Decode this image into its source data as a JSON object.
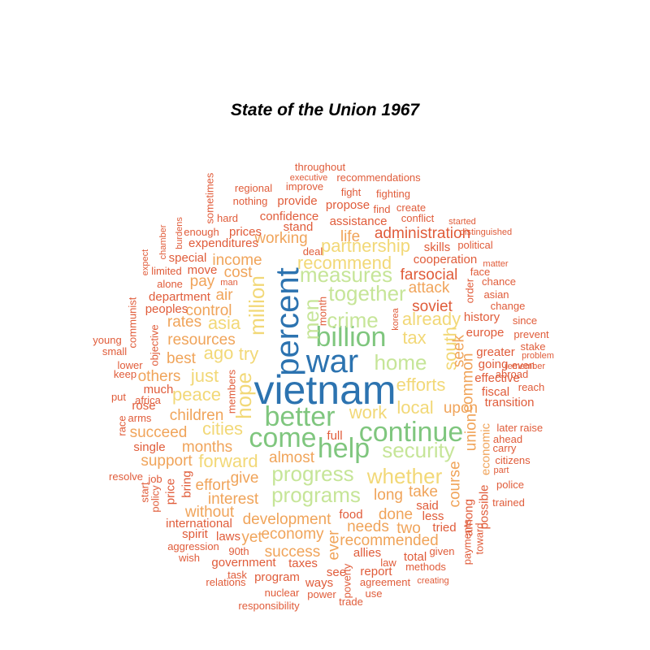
{
  "chart_data": {
    "type": "wordcloud",
    "title": "State of the Union 1967",
    "colors": {
      "darkblue": "#2c73b0",
      "blue": "#4b94c4",
      "green": "#7fc67e",
      "lightgreen": "#c6e598",
      "yellow": "#f2d877",
      "orange": "#f0a45a",
      "redorange": "#e05c3a"
    },
    "words": [
      {
        "text": "vietnam",
        "size": 8,
        "color": "darkblue"
      },
      {
        "text": "war",
        "size": 7,
        "color": "darkblue"
      },
      {
        "text": "percent",
        "size": 7,
        "color": "darkblue"
      },
      {
        "text": "better",
        "size": 6,
        "color": "green"
      },
      {
        "text": "come",
        "size": 6,
        "color": "green"
      },
      {
        "text": "billion",
        "size": 6,
        "color": "green"
      },
      {
        "text": "help",
        "size": 6,
        "color": "green"
      },
      {
        "text": "continue",
        "size": 6,
        "color": "green"
      },
      {
        "text": "progress",
        "size": 5,
        "color": "lightgreen"
      },
      {
        "text": "programs",
        "size": 5,
        "color": "lightgreen"
      },
      {
        "text": "crime",
        "size": 5,
        "color": "lightgreen"
      },
      {
        "text": "home",
        "size": 5,
        "color": "lightgreen"
      },
      {
        "text": "together",
        "size": 5,
        "color": "lightgreen"
      },
      {
        "text": "security",
        "size": 5,
        "color": "lightgreen"
      },
      {
        "text": "measures",
        "size": 5,
        "color": "lightgreen"
      },
      {
        "text": "men",
        "size": 5,
        "color": "lightgreen"
      },
      {
        "text": "whether",
        "size": 5,
        "color": "yellow"
      },
      {
        "text": "hope",
        "size": 5,
        "color": "yellow"
      },
      {
        "text": "million",
        "size": 5,
        "color": "yellow"
      },
      {
        "text": "recommend",
        "size": 4,
        "color": "yellow"
      },
      {
        "text": "try",
        "size": 4,
        "color": "yellow"
      },
      {
        "text": "forward",
        "size": 4,
        "color": "yellow"
      },
      {
        "text": "efforts",
        "size": 4,
        "color": "yellow"
      },
      {
        "text": "local",
        "size": 4,
        "color": "yellow"
      },
      {
        "text": "tax",
        "size": 4,
        "color": "yellow"
      },
      {
        "text": "work",
        "size": 4,
        "color": "yellow"
      },
      {
        "text": "already",
        "size": 4,
        "color": "yellow"
      },
      {
        "text": "south",
        "size": 4,
        "color": "yellow"
      },
      {
        "text": "partnership",
        "size": 4,
        "color": "yellow"
      },
      {
        "text": "peace",
        "size": 4,
        "color": "yellow"
      },
      {
        "text": "just",
        "size": 4,
        "color": "yellow"
      },
      {
        "text": "ago",
        "size": 4,
        "color": "yellow"
      },
      {
        "text": "asia",
        "size": 4,
        "color": "yellow"
      },
      {
        "text": "cities",
        "size": 4,
        "color": "yellow"
      },
      {
        "text": "union",
        "size": 3,
        "color": "orange"
      },
      {
        "text": "course",
        "size": 3,
        "color": "orange"
      },
      {
        "text": "common",
        "size": 3,
        "color": "orange"
      },
      {
        "text": "seek",
        "size": 3,
        "color": "orange"
      },
      {
        "text": "upon",
        "size": 3,
        "color": "orange"
      },
      {
        "text": "take",
        "size": 3,
        "color": "orange"
      },
      {
        "text": "long",
        "size": 3,
        "color": "orange"
      },
      {
        "text": "done",
        "size": 3,
        "color": "orange"
      },
      {
        "text": "two",
        "size": 3,
        "color": "orange"
      },
      {
        "text": "needs",
        "size": 3,
        "color": "orange"
      },
      {
        "text": "recommended",
        "size": 3,
        "color": "orange"
      },
      {
        "text": "development",
        "size": 3,
        "color": "orange"
      },
      {
        "text": "economy",
        "size": 3,
        "color": "orange"
      },
      {
        "text": "success",
        "size": 3,
        "color": "orange"
      },
      {
        "text": "interest",
        "size": 3,
        "color": "orange"
      },
      {
        "text": "give",
        "size": 3,
        "color": "orange"
      },
      {
        "text": "months",
        "size": 3,
        "color": "orange"
      },
      {
        "text": "succeed",
        "size": 3,
        "color": "orange"
      },
      {
        "text": "children",
        "size": 3,
        "color": "orange"
      },
      {
        "text": "almost",
        "size": 3,
        "color": "orange"
      },
      {
        "text": "support",
        "size": 3,
        "color": "orange"
      },
      {
        "text": "effort",
        "size": 3,
        "color": "orange"
      },
      {
        "text": "without",
        "size": 3,
        "color": "orange"
      },
      {
        "text": "yet",
        "size": 3,
        "color": "orange"
      },
      {
        "text": "ever",
        "size": 3,
        "color": "orange"
      },
      {
        "text": "resources",
        "size": 3,
        "color": "orange"
      },
      {
        "text": "control",
        "size": 3,
        "color": "orange"
      },
      {
        "text": "rates",
        "size": 3,
        "color": "orange"
      },
      {
        "text": "best",
        "size": 3,
        "color": "orange"
      },
      {
        "text": "others",
        "size": 3,
        "color": "orange"
      },
      {
        "text": "pay",
        "size": 3,
        "color": "orange"
      },
      {
        "text": "air",
        "size": 3,
        "color": "orange"
      },
      {
        "text": "cost",
        "size": 3,
        "color": "orange"
      },
      {
        "text": "income",
        "size": 3,
        "color": "orange"
      },
      {
        "text": "working",
        "size": 3,
        "color": "orange"
      },
      {
        "text": "life",
        "size": 3,
        "color": "orange"
      },
      {
        "text": "soviet",
        "size": 3,
        "color": "redorange"
      },
      {
        "text": "attack",
        "size": 3,
        "color": "orange"
      },
      {
        "text": "farsocial",
        "size": 3,
        "color": "redorange"
      },
      {
        "text": "cooperation",
        "size": 2,
        "color": "redorange"
      },
      {
        "text": "administration",
        "size": 3,
        "color": "redorange"
      },
      {
        "text": "skills",
        "size": 2,
        "color": "redorange"
      },
      {
        "text": "assistance",
        "size": 2,
        "color": "redorange"
      },
      {
        "text": "confidence",
        "size": 2,
        "color": "redorange"
      },
      {
        "text": "stand",
        "size": 2,
        "color": "redorange"
      },
      {
        "text": "expenditures",
        "size": 2,
        "color": "redorange"
      },
      {
        "text": "prices",
        "size": 2,
        "color": "redorange"
      },
      {
        "text": "special",
        "size": 2,
        "color": "redorange"
      },
      {
        "text": "move",
        "size": 2,
        "color": "redorange"
      },
      {
        "text": "department",
        "size": 2,
        "color": "redorange"
      },
      {
        "text": "peoples",
        "size": 2,
        "color": "redorange"
      },
      {
        "text": "international",
        "size": 2,
        "color": "redorange"
      },
      {
        "text": "food",
        "size": 2,
        "color": "redorange"
      },
      {
        "text": "full",
        "size": 2,
        "color": "redorange"
      },
      {
        "text": "said",
        "size": 2,
        "color": "redorange"
      },
      {
        "text": "less",
        "size": 2,
        "color": "redorange"
      },
      {
        "text": "tried",
        "size": 2,
        "color": "redorange"
      },
      {
        "text": "among",
        "size": 2,
        "color": "redorange"
      },
      {
        "text": "possible",
        "size": 2,
        "color": "redorange"
      },
      {
        "text": "economic",
        "size": 2,
        "color": "orange"
      },
      {
        "text": "history",
        "size": 2,
        "color": "redorange"
      },
      {
        "text": "europe",
        "size": 2,
        "color": "redorange"
      },
      {
        "text": "greater",
        "size": 2,
        "color": "redorange"
      },
      {
        "text": "going",
        "size": 2,
        "color": "redorange"
      },
      {
        "text": "effective",
        "size": 2,
        "color": "redorange"
      },
      {
        "text": "fiscal",
        "size": 2,
        "color": "redorange"
      },
      {
        "text": "transition",
        "size": 2,
        "color": "redorange"
      },
      {
        "text": "allies",
        "size": 2,
        "color": "redorange"
      },
      {
        "text": "report",
        "size": 2,
        "color": "redorange"
      },
      {
        "text": "total",
        "size": 2,
        "color": "redorange"
      },
      {
        "text": "see",
        "size": 2,
        "color": "redorange"
      },
      {
        "text": "ways",
        "size": 2,
        "color": "redorange"
      },
      {
        "text": "taxes",
        "size": 2,
        "color": "redorange"
      },
      {
        "text": "government",
        "size": 2,
        "color": "redorange"
      },
      {
        "text": "program",
        "size": 2,
        "color": "redorange"
      },
      {
        "text": "laws",
        "size": 2,
        "color": "redorange"
      },
      {
        "text": "spirit",
        "size": 2,
        "color": "redorange"
      },
      {
        "text": "price",
        "size": 2,
        "color": "redorange"
      },
      {
        "text": "bring",
        "size": 2,
        "color": "redorange"
      },
      {
        "text": "single",
        "size": 2,
        "color": "redorange"
      },
      {
        "text": "much",
        "size": 2,
        "color": "redorange"
      },
      {
        "text": "rose",
        "size": 2,
        "color": "redorange"
      },
      {
        "text": "provide",
        "size": 2,
        "color": "redorange"
      },
      {
        "text": "propose",
        "size": 2,
        "color": "redorange"
      },
      {
        "text": "enough",
        "size": 1,
        "color": "redorange"
      },
      {
        "text": "hard",
        "size": 1,
        "color": "redorange"
      },
      {
        "text": "regional",
        "size": 1,
        "color": "redorange"
      },
      {
        "text": "nothing",
        "size": 1,
        "color": "redorange"
      },
      {
        "text": "improve",
        "size": 1,
        "color": "redorange"
      },
      {
        "text": "fight",
        "size": 1,
        "color": "redorange"
      },
      {
        "text": "fighting",
        "size": 1,
        "color": "redorange"
      },
      {
        "text": "find",
        "size": 1,
        "color": "redorange"
      },
      {
        "text": "create",
        "size": 1,
        "color": "redorange"
      },
      {
        "text": "conflict",
        "size": 1,
        "color": "redorange"
      },
      {
        "text": "throughout",
        "size": 1,
        "color": "redorange"
      },
      {
        "text": "executive",
        "size": 0,
        "color": "redorange"
      },
      {
        "text": "recommendations",
        "size": 1,
        "color": "redorange"
      },
      {
        "text": "started",
        "size": 0,
        "color": "redorange"
      },
      {
        "text": "distinguished",
        "size": 0,
        "color": "redorange"
      },
      {
        "text": "political",
        "size": 1,
        "color": "redorange"
      },
      {
        "text": "matter",
        "size": 0,
        "color": "redorange"
      },
      {
        "text": "face",
        "size": 1,
        "color": "redorange"
      },
      {
        "text": "chance",
        "size": 1,
        "color": "redorange"
      },
      {
        "text": "asian",
        "size": 1,
        "color": "redorange"
      },
      {
        "text": "change",
        "size": 1,
        "color": "redorange"
      },
      {
        "text": "since",
        "size": 1,
        "color": "redorange"
      },
      {
        "text": "prevent",
        "size": 1,
        "color": "redorange"
      },
      {
        "text": "stake",
        "size": 1,
        "color": "redorange"
      },
      {
        "text": "problem",
        "size": 0,
        "color": "redorange"
      },
      {
        "text": "remember",
        "size": 0,
        "color": "redorange"
      },
      {
        "text": "abroad",
        "size": 1,
        "color": "redorange"
      },
      {
        "text": "even",
        "size": 1,
        "color": "redorange"
      },
      {
        "text": "reach",
        "size": 1,
        "color": "redorange"
      },
      {
        "text": "later",
        "size": 1,
        "color": "redorange"
      },
      {
        "text": "raise",
        "size": 1,
        "color": "redorange"
      },
      {
        "text": "ahead",
        "size": 1,
        "color": "redorange"
      },
      {
        "text": "carry",
        "size": 1,
        "color": "redorange"
      },
      {
        "text": "citizens",
        "size": 1,
        "color": "redorange"
      },
      {
        "text": "part",
        "size": 0,
        "color": "redorange"
      },
      {
        "text": "police",
        "size": 1,
        "color": "redorange"
      },
      {
        "text": "trained",
        "size": 1,
        "color": "redorange"
      },
      {
        "text": "payments",
        "size": 1,
        "color": "redorange"
      },
      {
        "text": "toward",
        "size": 1,
        "color": "redorange"
      },
      {
        "text": "given",
        "size": 1,
        "color": "redorange"
      },
      {
        "text": "methods",
        "size": 1,
        "color": "redorange"
      },
      {
        "text": "creating",
        "size": 0,
        "color": "redorange"
      },
      {
        "text": "law",
        "size": 1,
        "color": "redorange"
      },
      {
        "text": "agreement",
        "size": 1,
        "color": "redorange"
      },
      {
        "text": "use",
        "size": 1,
        "color": "redorange"
      },
      {
        "text": "trade",
        "size": 1,
        "color": "redorange"
      },
      {
        "text": "poverty",
        "size": 1,
        "color": "redorange"
      },
      {
        "text": "power",
        "size": 1,
        "color": "redorange"
      },
      {
        "text": "nuclear",
        "size": 1,
        "color": "redorange"
      },
      {
        "text": "responsibility",
        "size": 1,
        "color": "redorange"
      },
      {
        "text": "relations",
        "size": 1,
        "color": "redorange"
      },
      {
        "text": "task",
        "size": 1,
        "color": "redorange"
      },
      {
        "text": "90th",
        "size": 1,
        "color": "redorange"
      },
      {
        "text": "wish",
        "size": 1,
        "color": "redorange"
      },
      {
        "text": "aggression",
        "size": 1,
        "color": "redorange"
      },
      {
        "text": "resolve",
        "size": 1,
        "color": "redorange"
      },
      {
        "text": "job",
        "size": 1,
        "color": "redorange"
      },
      {
        "text": "start",
        "size": 1,
        "color": "redorange"
      },
      {
        "text": "policy",
        "size": 1,
        "color": "redorange"
      },
      {
        "text": "race",
        "size": 1,
        "color": "redorange"
      },
      {
        "text": "arms",
        "size": 1,
        "color": "redorange"
      },
      {
        "text": "put",
        "size": 1,
        "color": "redorange"
      },
      {
        "text": "africa",
        "size": 1,
        "color": "redorange"
      },
      {
        "text": "keep",
        "size": 1,
        "color": "redorange"
      },
      {
        "text": "lower",
        "size": 1,
        "color": "redorange"
      },
      {
        "text": "small",
        "size": 1,
        "color": "redorange"
      },
      {
        "text": "young",
        "size": 1,
        "color": "redorange"
      },
      {
        "text": "communist",
        "size": 1,
        "color": "redorange"
      },
      {
        "text": "objective",
        "size": 1,
        "color": "redorange"
      },
      {
        "text": "alone",
        "size": 1,
        "color": "redorange"
      },
      {
        "text": "limited",
        "size": 1,
        "color": "redorange"
      },
      {
        "text": "expect",
        "size": 0,
        "color": "redorange"
      },
      {
        "text": "chamber",
        "size": 0,
        "color": "redorange"
      },
      {
        "text": "burdens",
        "size": 0,
        "color": "redorange"
      },
      {
        "text": "sometimes",
        "size": 1,
        "color": "redorange"
      },
      {
        "text": "man",
        "size": 0,
        "color": "redorange"
      },
      {
        "text": "deal",
        "size": 1,
        "color": "redorange"
      },
      {
        "text": "members",
        "size": 1,
        "color": "redorange"
      },
      {
        "text": "month",
        "size": 1,
        "color": "redorange"
      },
      {
        "text": "korea",
        "size": 0,
        "color": "redorange"
      },
      {
        "text": "order",
        "size": 1,
        "color": "redorange"
      }
    ]
  }
}
